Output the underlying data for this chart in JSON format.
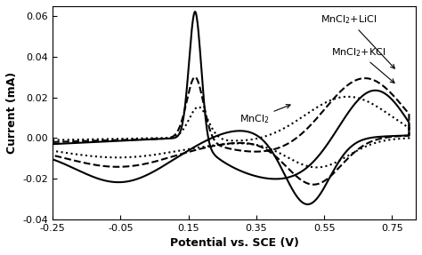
{
  "title": "",
  "xlabel": "Potential vs. SCE (V)",
  "ylabel": "Current (mA)",
  "xlim": [
    -0.25,
    0.82
  ],
  "ylim": [
    -0.04,
    0.065
  ],
  "xticks": [
    -0.25,
    -0.05,
    0.15,
    0.35,
    0.55,
    0.75
  ],
  "yticks": [
    -0.04,
    -0.02,
    0.0,
    0.02,
    0.04,
    0.06
  ],
  "background_color": "#ffffff",
  "line_color": "#000000",
  "solid_lw": 1.5,
  "dashed_lw": 1.5,
  "dotted_lw": 1.5
}
